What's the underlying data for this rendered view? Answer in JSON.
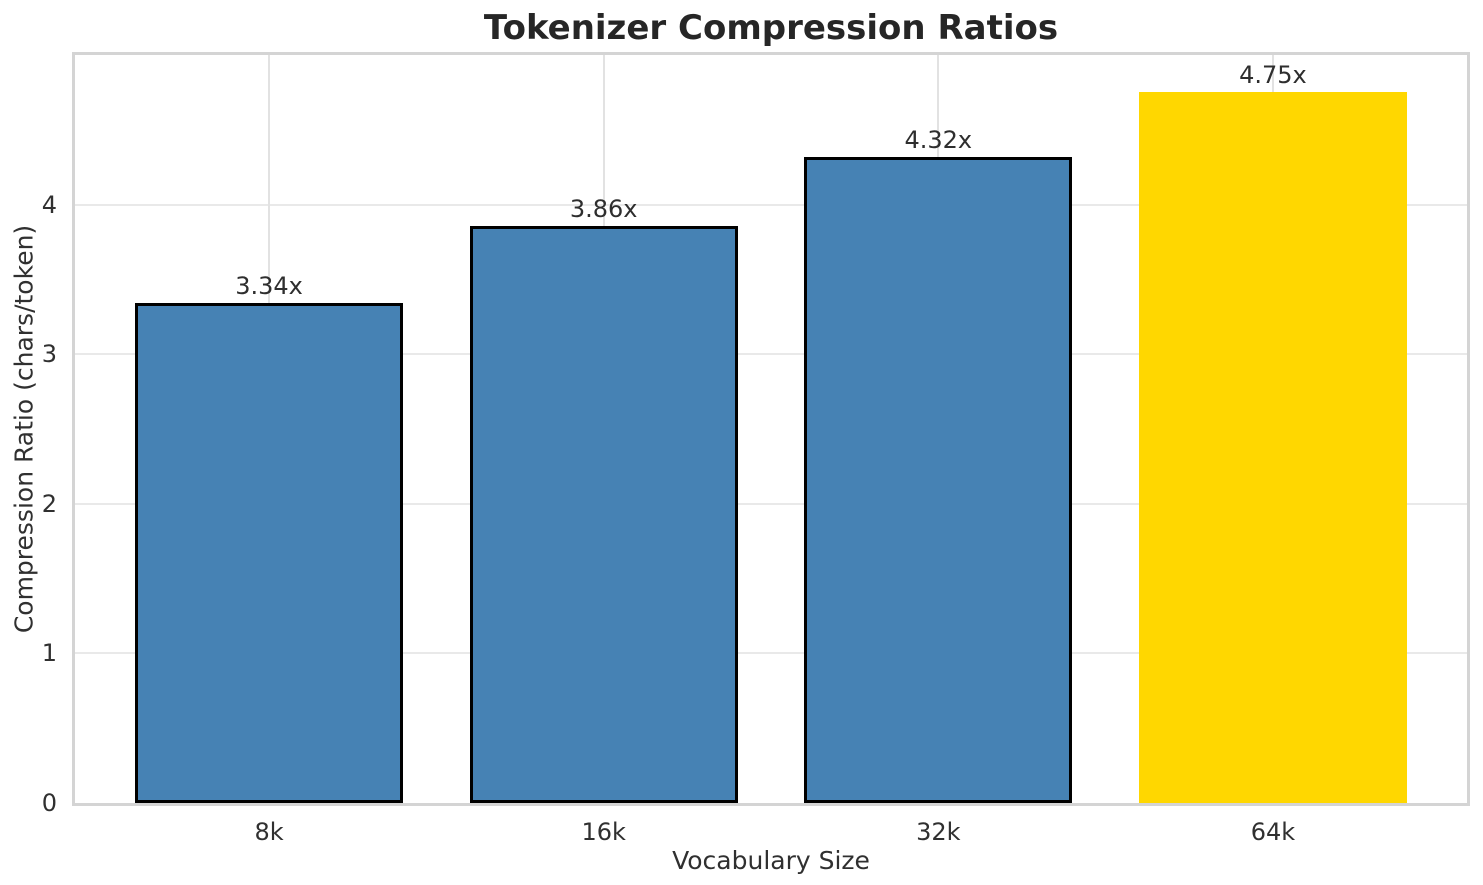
{
  "chart_data": {
    "type": "bar",
    "title": "Tokenizer Compression Ratios",
    "xlabel": "Vocabulary Size",
    "ylabel": "Compression Ratio (chars/token)",
    "categories": [
      "8k",
      "16k",
      "32k",
      "64k"
    ],
    "values": [
      3.34,
      3.86,
      4.32,
      4.75
    ],
    "bar_labels": [
      "3.34x",
      "3.86x",
      "4.32x",
      "4.75x"
    ],
    "bar_colors": [
      "#4682B4",
      "#4682B4",
      "#4682B4",
      "#FFD700"
    ],
    "bar_edge_colors": [
      "#000000",
      "#000000",
      "#000000",
      "none"
    ],
    "highlight_index": 3,
    "yticks": [
      0,
      1,
      2,
      3,
      4
    ],
    "ylim": [
      0,
      5
    ],
    "xlim": [
      -0.58,
      3.58
    ],
    "bar_width": 0.8,
    "grid": true,
    "legend_position": "none",
    "colors": {
      "grid_h": "#e9e9e9",
      "grid_v": "#e2e2e2",
      "spine": "#d4d4d4",
      "text": "#303030",
      "title_text": "#262626",
      "background": "#ffffff"
    }
  }
}
